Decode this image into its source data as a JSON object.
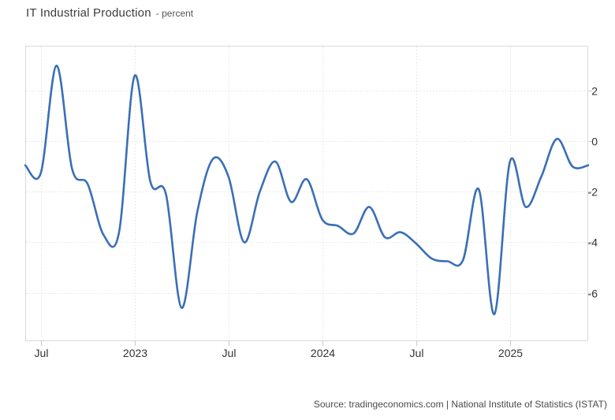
{
  "header": {
    "title": "IT Industrial Production",
    "subtitle": "- percent"
  },
  "footer": {
    "source": "Source: tradingeconomics.com | National Institute of Statistics (ISTAT)"
  },
  "chart_data": {
    "type": "line",
    "title": "IT Industrial Production",
    "ylabel": "percent",
    "legend": "none",
    "grid": "dotted",
    "x": [
      "2022-06",
      "2022-07",
      "2022-08",
      "2022-09",
      "2022-10",
      "2022-11",
      "2022-12",
      "2023-01",
      "2023-02",
      "2023-03",
      "2023-04",
      "2023-05",
      "2023-06",
      "2023-07",
      "2023-08",
      "2023-09",
      "2023-10",
      "2023-11",
      "2023-12",
      "2024-01",
      "2024-02",
      "2024-03",
      "2024-04",
      "2024-05",
      "2024-06",
      "2024-07",
      "2024-08",
      "2024-09",
      "2024-10",
      "2024-11",
      "2024-12",
      "2025-01",
      "2025-02",
      "2025-03",
      "2025-04",
      "2025-05",
      "2025-06"
    ],
    "values": [
      -0.95,
      -1.25,
      3.0,
      -1.1,
      -1.7,
      -3.7,
      -3.6,
      2.6,
      -1.6,
      -2.1,
      -6.6,
      -2.8,
      -0.7,
      -1.4,
      -4.0,
      -2.0,
      -0.8,
      -2.4,
      -1.5,
      -3.1,
      -3.35,
      -3.65,
      -2.6,
      -3.8,
      -3.6,
      -4.05,
      -4.65,
      -4.75,
      -4.7,
      -1.9,
      -6.85,
      -0.8,
      -2.6,
      -1.4,
      0.1,
      -1.0,
      -0.95
    ],
    "x_ticks": [
      {
        "label": "Jul",
        "index": 1
      },
      {
        "label": "2023",
        "index": 7
      },
      {
        "label": "Jul",
        "index": 13
      },
      {
        "label": "2024",
        "index": 19
      },
      {
        "label": "Jul",
        "index": 25
      },
      {
        "label": "2025",
        "index": 31
      }
    ],
    "y_ticks": [
      2,
      0,
      -2,
      -4,
      -6
    ],
    "ylim": [
      -7.92,
      3.79
    ],
    "line_color": "#3a6fb5",
    "label_color": "#333333",
    "grid_color": "#e3e3e3",
    "tick_color": "#c9c9c9",
    "border_color": "#d9d9d9"
  }
}
